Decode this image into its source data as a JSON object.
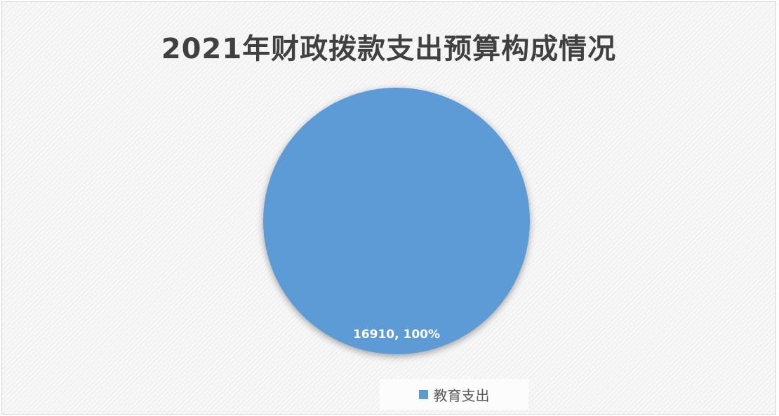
{
  "chart_data": {
    "type": "pie",
    "title": "2021年财政拨款支出预算构成情况",
    "slices": [
      {
        "name": "教育支出",
        "value": 16910,
        "percent": 100,
        "data_label": "16910, 100%",
        "color": "#5b9bd5"
      }
    ],
    "legend_position": "bottom",
    "legend": [
      {
        "label": "教育支出",
        "color": "#5b9bd5"
      }
    ]
  }
}
